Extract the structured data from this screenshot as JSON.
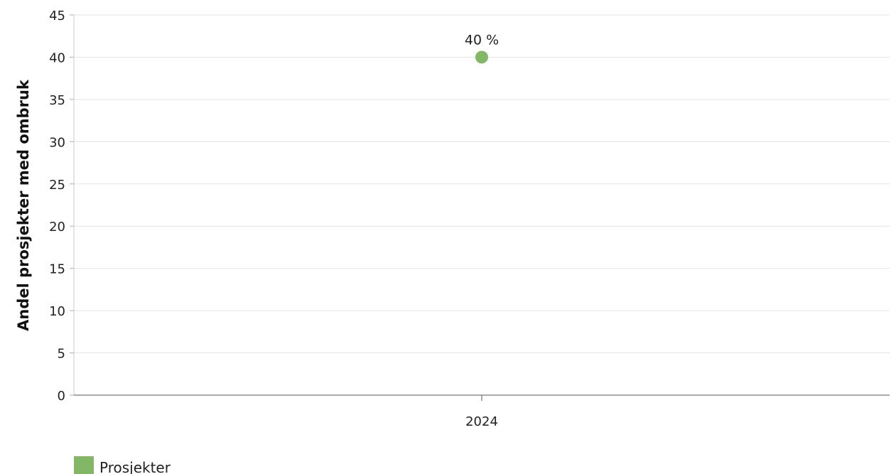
{
  "chart_data": {
    "type": "scatter",
    "categories": [
      "2024"
    ],
    "series": [
      {
        "name": "Prosjekter",
        "values": [
          40
        ],
        "data_labels": [
          "40 %"
        ],
        "color": "#82b865"
      }
    ],
    "ylabel": "Andel prosjekter med ombruk",
    "xlabel": "",
    "ylim": [
      0,
      45
    ],
    "yticks": [
      0,
      5,
      10,
      15,
      20,
      25,
      30,
      35,
      40,
      45
    ],
    "grid": true,
    "legend_position": "bottom-left"
  }
}
